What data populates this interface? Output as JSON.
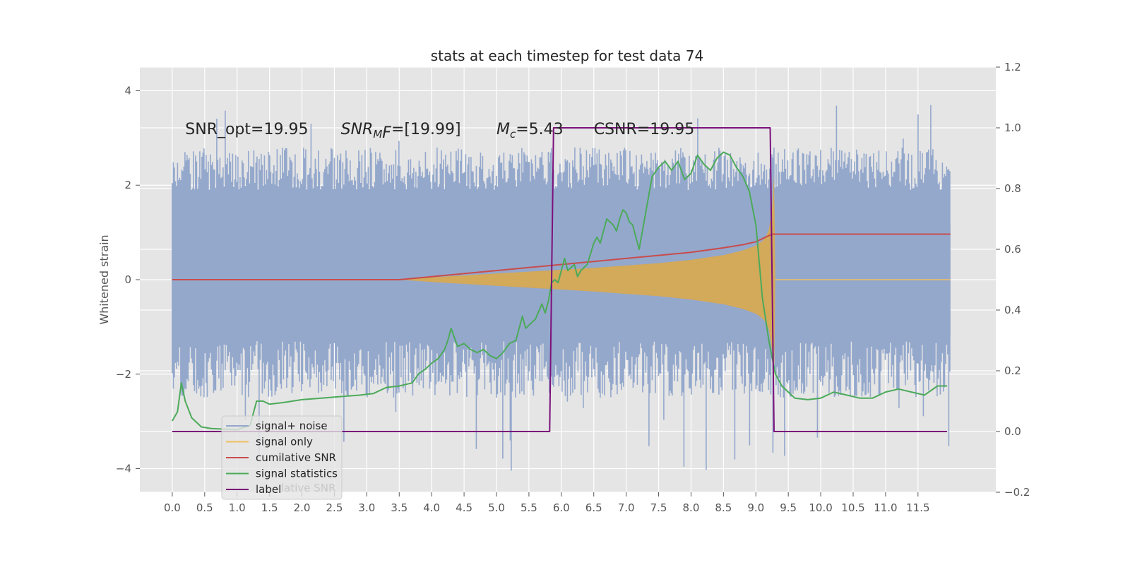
{
  "chart_data": {
    "type": "line",
    "title": "stats at each timestep for test data 74",
    "ylabel": "Whitened strain",
    "xlabel": "",
    "xlim": [
      -0.5,
      12.7
    ],
    "ylim": [
      -4.5,
      4.5
    ],
    "y2lim": [
      -0.2,
      1.2
    ],
    "xticks": [
      0.0,
      0.5,
      1.0,
      1.5,
      2.0,
      2.5,
      3.0,
      3.5,
      4.0,
      4.5,
      5.0,
      5.5,
      6.0,
      6.5,
      7.0,
      7.5,
      8.0,
      8.5,
      9.0,
      9.5,
      10.0,
      10.5,
      11.0,
      11.5
    ],
    "xtick_labels": [
      "0.0",
      "0.5",
      "1.0",
      "1.5",
      "2.0",
      "2.5",
      "3.0",
      "3.5",
      "4.0",
      "4.5",
      "5.0",
      "5.5",
      "6.0",
      "6.5",
      "7.0",
      "7.5",
      "8.0",
      "8.5",
      "9.0",
      "9.5",
      "10.0",
      "10.5",
      "11.0",
      "11.5"
    ],
    "yticks": [
      -4,
      -2,
      0,
      2,
      4
    ],
    "ytick_labels": [
      "−4",
      "−2",
      "0",
      "2",
      "4"
    ],
    "y2ticks": [
      -0.2,
      0.0,
      0.2,
      0.4,
      0.6,
      0.8,
      1.0,
      1.2
    ],
    "y2tick_labels": [
      "−0.2",
      "0.0",
      "0.2",
      "0.4",
      "0.6",
      "0.8",
      "1.0",
      "1.2"
    ],
    "annotations": [
      {
        "x": 0.2,
        "y": 3.2,
        "text": "SNR_opt=19.95"
      },
      {
        "x": 2.6,
        "y": 3.2,
        "text": "SNR",
        "sub": "M",
        "rest": "F=[19.99]"
      },
      {
        "x": 5.0,
        "y": 3.2,
        "text": "M",
        "sub": "c",
        "rest": "=5.43"
      },
      {
        "x": 6.5,
        "y": 3.2,
        "text": "CSNR=19.95"
      }
    ],
    "legend_location": "lower-left",
    "legend": [
      {
        "label": "signal+ noise",
        "color": "#94a8cc"
      },
      {
        "label": "signal only",
        "color": "#f0c060"
      },
      {
        "label": "cumilative SNR",
        "color": "#c84c4c"
      },
      {
        "label": "signal statistics",
        "color": "#4caa5a"
      },
      {
        "label": "label",
        "color": "#7b107b"
      }
    ],
    "legend_ghost_text": "lative SNR",
    "series": [
      {
        "name": "signal+ noise",
        "axis": "left",
        "style": "noise-band",
        "x_range": [
          0.0,
          12.0
        ],
        "typical_range": [
          -2.0,
          2.5
        ],
        "peak_range": [
          -4.1,
          4.1
        ],
        "color": "#94a8cc"
      },
      {
        "name": "signal only",
        "axis": "left",
        "style": "chirp-envelope",
        "x": [
          3.5,
          4.0,
          4.5,
          5.0,
          5.5,
          6.0,
          6.5,
          7.0,
          7.5,
          8.0,
          8.5,
          8.8,
          9.0,
          9.1,
          9.15,
          9.2,
          9.25,
          9.28,
          9.3
        ],
        "envelope": [
          0.0,
          0.05,
          0.09,
          0.13,
          0.17,
          0.21,
          0.25,
          0.3,
          0.35,
          0.42,
          0.52,
          0.62,
          0.72,
          0.82,
          0.9,
          1.05,
          1.5,
          2.2,
          0.0
        ],
        "after_x": [
          9.3,
          12.0
        ],
        "color": "#f0c060",
        "fill": "#d9a84e"
      },
      {
        "name": "cumilative SNR",
        "axis": "right",
        "x": [
          0.0,
          1.0,
          2.0,
          3.0,
          3.5,
          4.0,
          4.5,
          5.0,
          5.5,
          6.0,
          6.5,
          7.0,
          7.5,
          8.0,
          8.5,
          8.8,
          9.0,
          9.15,
          9.25,
          9.3,
          12.0
        ],
        "values": [
          0.5,
          0.5,
          0.5,
          0.5,
          0.5,
          0.51,
          0.52,
          0.53,
          0.54,
          0.55,
          0.56,
          0.57,
          0.58,
          0.59,
          0.605,
          0.615,
          0.625,
          0.64,
          0.65,
          0.65,
          0.65
        ],
        "color": "#c84c4c"
      },
      {
        "name": "signal statistics",
        "axis": "right",
        "x": [
          0.0,
          0.08,
          0.14,
          0.2,
          0.3,
          0.45,
          0.6,
          0.8,
          1.0,
          1.2,
          1.3,
          1.4,
          1.5,
          1.7,
          2.0,
          2.3,
          2.6,
          2.9,
          3.1,
          3.3,
          3.5,
          3.7,
          3.8,
          3.9,
          4.0,
          4.1,
          4.2,
          4.25,
          4.3,
          4.4,
          4.5,
          4.6,
          4.7,
          4.8,
          4.9,
          5.0,
          5.1,
          5.2,
          5.3,
          5.4,
          5.45,
          5.5,
          5.6,
          5.7,
          5.75,
          5.8,
          5.85,
          5.9,
          5.95,
          6.0,
          6.05,
          6.1,
          6.2,
          6.25,
          6.3,
          6.4,
          6.5,
          6.55,
          6.6,
          6.7,
          6.8,
          6.85,
          6.9,
          6.95,
          7.0,
          7.05,
          7.1,
          7.2,
          7.3,
          7.4,
          7.5,
          7.6,
          7.7,
          7.8,
          7.9,
          8.0,
          8.1,
          8.2,
          8.3,
          8.4,
          8.5,
          8.6,
          8.7,
          8.8,
          8.9,
          9.0,
          9.1,
          9.2,
          9.3,
          9.4,
          9.5,
          9.6,
          9.8,
          10.0,
          10.2,
          10.4,
          10.6,
          10.8,
          11.0,
          11.2,
          11.4,
          11.6,
          11.8,
          11.95
        ],
        "values": [
          0.035,
          0.065,
          0.16,
          0.1,
          0.045,
          0.015,
          0.01,
          0.008,
          0.006,
          0.02,
          0.1,
          0.1,
          0.09,
          0.095,
          0.105,
          0.11,
          0.115,
          0.12,
          0.125,
          0.145,
          0.15,
          0.16,
          0.19,
          0.205,
          0.225,
          0.24,
          0.27,
          0.3,
          0.34,
          0.28,
          0.29,
          0.27,
          0.26,
          0.27,
          0.25,
          0.24,
          0.26,
          0.29,
          0.3,
          0.38,
          0.34,
          0.35,
          0.37,
          0.42,
          0.39,
          0.43,
          0.49,
          0.5,
          0.49,
          0.53,
          0.57,
          0.53,
          0.55,
          0.51,
          0.53,
          0.55,
          0.62,
          0.64,
          0.62,
          0.7,
          0.68,
          0.66,
          0.7,
          0.73,
          0.72,
          0.69,
          0.68,
          0.6,
          0.72,
          0.84,
          0.87,
          0.89,
          0.86,
          0.89,
          0.83,
          0.85,
          0.91,
          0.88,
          0.86,
          0.9,
          0.92,
          0.91,
          0.87,
          0.84,
          0.79,
          0.68,
          0.44,
          0.3,
          0.19,
          0.15,
          0.13,
          0.11,
          0.105,
          0.11,
          0.13,
          0.12,
          0.11,
          0.11,
          0.13,
          0.14,
          0.13,
          0.12,
          0.15,
          0.15
        ],
        "color": "#4caa5a"
      },
      {
        "name": "label",
        "axis": "right",
        "x": [
          0.0,
          5.82,
          5.88,
          9.22,
          9.28,
          11.95
        ],
        "values": [
          0.0,
          0.0,
          1.0,
          1.0,
          0.0,
          0.0
        ],
        "color": "#7b107b"
      }
    ]
  }
}
